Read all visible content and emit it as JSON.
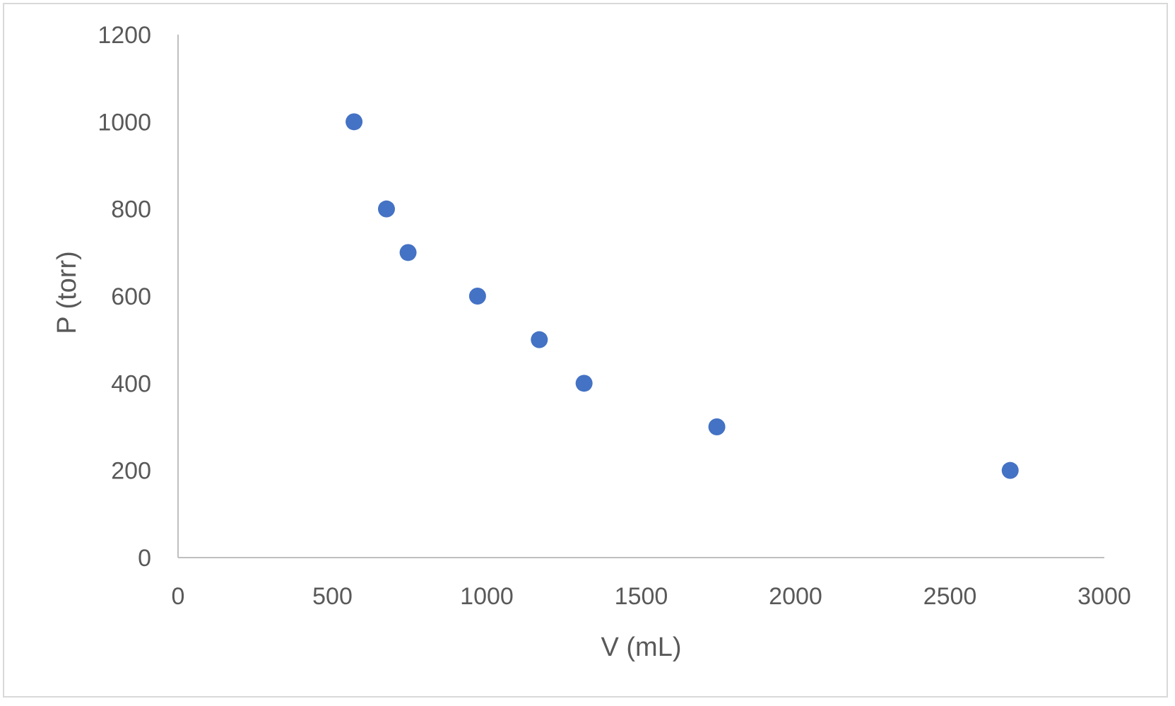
{
  "chart_data": {
    "type": "scatter",
    "title": "",
    "xlabel": "V (mL)",
    "ylabel": "P (torr)",
    "xlim": [
      0,
      3000
    ],
    "ylim": [
      0,
      1200
    ],
    "x_ticks": [
      "0",
      "500",
      "1000",
      "1500",
      "2000",
      "2500",
      "3000"
    ],
    "y_ticks": [
      "0",
      "200",
      "400",
      "600",
      "800",
      "1000",
      "1200"
    ],
    "grid": false,
    "legend": "none",
    "marker_color": "#4472C4",
    "points": [
      {
        "x": 570,
        "y": 1000
      },
      {
        "x": 675,
        "y": 800
      },
      {
        "x": 745,
        "y": 700
      },
      {
        "x": 970,
        "y": 600
      },
      {
        "x": 1170,
        "y": 500
      },
      {
        "x": 1315,
        "y": 400
      },
      {
        "x": 1745,
        "y": 300
      },
      {
        "x": 2695,
        "y": 200
      }
    ]
  }
}
